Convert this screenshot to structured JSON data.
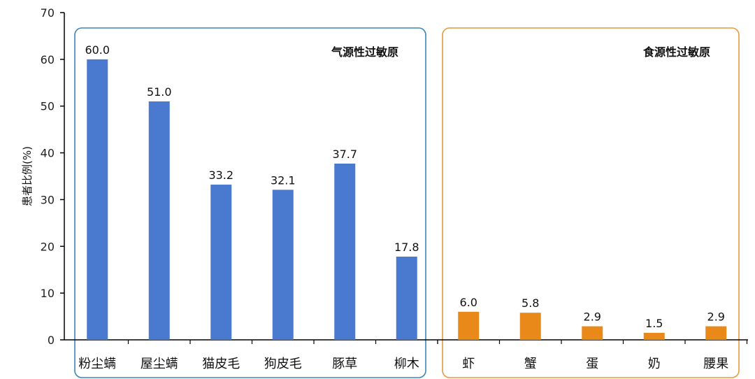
{
  "chart_data": {
    "type": "bar",
    "ylabel": "患者比例(%)",
    "ylim": [
      0,
      70
    ],
    "yticks": [
      0,
      10,
      20,
      30,
      40,
      50,
      60,
      70
    ],
    "grid": false,
    "groups": [
      {
        "name": "气源性过敏原",
        "color": "#4a7acf",
        "border_color": "#3a86b8",
        "categories": [
          "粉尘螨",
          "屋尘螨",
          "猫皮毛",
          "狗皮毛",
          "豚草",
          "柳木"
        ],
        "values": [
          60.0,
          51.0,
          33.2,
          32.1,
          37.7,
          17.8
        ],
        "value_labels": [
          "60.0",
          "51.0",
          "33.2",
          "32.1",
          "37.7",
          "17.8"
        ]
      },
      {
        "name": "食源性过敏原",
        "color": "#e8891a",
        "border_color": "#e69a3c",
        "categories": [
          "虾",
          "蟹",
          "蛋",
          "奶",
          "腰果"
        ],
        "values": [
          6.0,
          5.8,
          2.9,
          1.5,
          2.9
        ],
        "value_labels": [
          "6.0",
          "5.8",
          "2.9",
          "1.5",
          "2.9"
        ]
      }
    ]
  }
}
